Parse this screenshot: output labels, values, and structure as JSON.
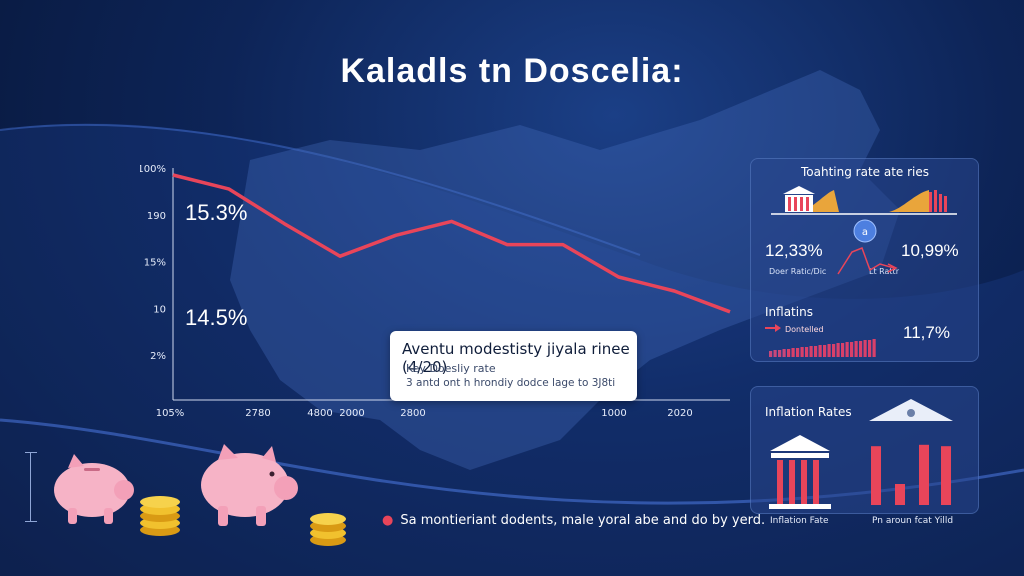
{
  "page": {
    "title": "Kaladls tn Doscelia:",
    "caption": "Sa montieriant dodents, male yoral abe and do by yerd."
  },
  "chart_data": {
    "type": "line",
    "title": "",
    "x_ticks": [
      "105%",
      "2780",
      "4800",
      "2000",
      "2800",
      "1000",
      "2020"
    ],
    "y_ticks": [
      "100%",
      "190",
      "15%",
      "10",
      "2%"
    ],
    "ylim": [
      0,
      100
    ],
    "series": [
      {
        "values": [
          97,
          91,
          76,
          62,
          71,
          77,
          67,
          67,
          53,
          47,
          38
        ]
      }
    ],
    "annotations": [
      "15.3%",
      "14.5%"
    ],
    "color": "#e8455a",
    "grid": false
  },
  "callout": {
    "title": "Aventu modestisty jiyala rinee (4/20)",
    "subtitle": "Key Doesliy rate",
    "note": "3 antd ont h hrondiy dodce lage to 3J8ti"
  },
  "panel_rates": {
    "title": "Toahting rate ate ries",
    "left_value": "12,33%",
    "left_label": "Doer Ratic/Dic",
    "right_value": "10,99%",
    "right_label": "Lt Rattr",
    "inflation_title": "Inflatins",
    "inflation_label": "Dontelled",
    "inflation_value": "11,7%",
    "accent": "#e8455a"
  },
  "panel_inflation": {
    "title": "Inflation Rates",
    "bars": [
      0.84,
      0.3,
      0.86,
      0.84
    ],
    "left_label": "Inflation Fate",
    "right_label": "Pn aroun fcat Yilld"
  }
}
